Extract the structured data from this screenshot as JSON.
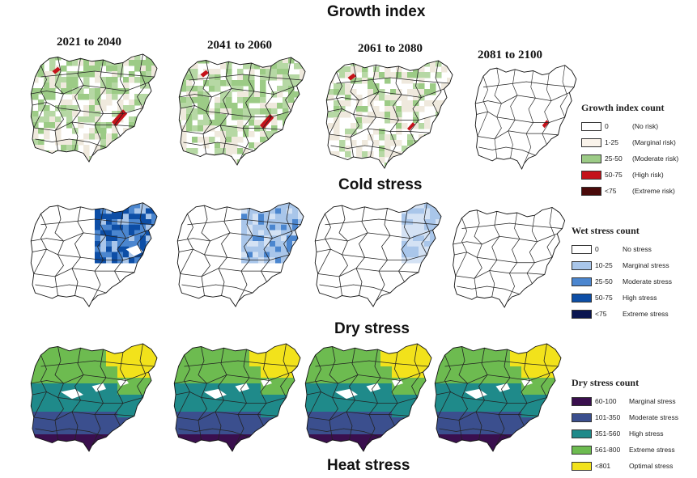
{
  "titles": {
    "growth": "Growth index",
    "cold": "Cold stress",
    "dry": "Dry stress",
    "heat": "Heat stress"
  },
  "periods": [
    "2021 to 2040",
    "2041 to 2060",
    "2061 to 2080",
    "2081 to 2100"
  ],
  "legends": {
    "growth": {
      "title": "Growth index count",
      "items": [
        {
          "range": "0",
          "label": "(No risk)",
          "color": "#ffffff"
        },
        {
          "range": "1-25",
          "label": "(Marginal risk)",
          "color": "#faf3ea"
        },
        {
          "range": "25-50",
          "label": "(Moderate risk)",
          "color": "#9ccb86"
        },
        {
          "range": "50-75",
          "label": "(High risk)",
          "color": "#c4121a"
        },
        {
          "range": "<75",
          "label": "(Extreme risk)",
          "color": "#4a0a0a"
        }
      ]
    },
    "wet": {
      "title": "Wet stress count",
      "items": [
        {
          "range": "0",
          "label": "No stress",
          "color": "#ffffff"
        },
        {
          "range": "10-25",
          "label": "Marginal stress",
          "color": "#a9c6ea"
        },
        {
          "range": "25-50",
          "label": "Moderate stress",
          "color": "#4b86cf"
        },
        {
          "range": "50-75",
          "label": "High stress",
          "color": "#0d4ea6"
        },
        {
          "range": "<75",
          "label": "Extreme stress",
          "color": "#0a1550"
        }
      ]
    },
    "dry": {
      "title": "Dry stress count",
      "items": [
        {
          "range": "60-100",
          "label": "Marginal stress",
          "color": "#3a0f4e"
        },
        {
          "range": "101-350",
          "label": "Moderate stress",
          "color": "#3b4f8e"
        },
        {
          "range": "351-560",
          "label": "High stress",
          "color": "#1f8a8a"
        },
        {
          "range": "561-800",
          "label": "Extreme stress",
          "color": "#6dbb50"
        },
        {
          "range": "<801",
          "label": "Optimal stress",
          "color": "#f2e21b"
        }
      ]
    }
  },
  "palette": {
    "growth_green": "#9ccb86",
    "growth_red": "#c4121a",
    "growth_pale": "#efe9dd",
    "cold_dark": "#0d4ea6",
    "cold_mid": "#4b86cf",
    "cold_light": "#a9c6ea",
    "dry_yellow": "#f2e21b",
    "dry_green": "#6dbb50",
    "dry_teal": "#1f8a8a",
    "dry_blue": "#3b4f8e",
    "dry_purple": "#3a0f4e"
  }
}
